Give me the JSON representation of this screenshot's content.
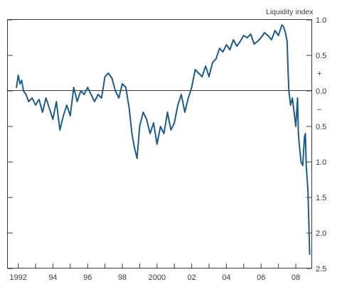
{
  "chart_data": {
    "type": "line",
    "title": "",
    "ylabel": "Liquidity index",
    "xlabel": "",
    "x_tick_labels": [
      "1992",
      "94",
      "96",
      "98",
      "2000",
      "02",
      "04",
      "06",
      "08"
    ],
    "y_tick_labels": [
      "1.0",
      "0.5",
      "+",
      "0.0",
      "–",
      "0.5",
      "1.0",
      "1.5",
      "2.0",
      "2.5"
    ],
    "xlim": [
      1991.4,
      2008.9
    ],
    "ylim": [
      -2.5,
      1.0
    ],
    "zero_line": true,
    "grid": false,
    "line_color": "#1d5d8a",
    "series": [
      {
        "x": [
          1991.9,
          1992.0,
          1992.1,
          1992.2,
          1992.3,
          1992.45,
          1992.6,
          1992.8,
          1993.0,
          1993.2,
          1993.4,
          1993.6,
          1993.8,
          1994.0,
          1994.2,
          1994.4,
          1994.6,
          1994.8,
          1995.0,
          1995.2,
          1995.4,
          1995.6,
          1995.8,
          1996.0,
          1996.2,
          1996.4,
          1996.6,
          1996.8,
          1997.0,
          1997.2,
          1997.4,
          1997.6,
          1997.8,
          1998.0,
          1998.2,
          1998.4,
          1998.55,
          1998.7,
          1998.85,
          1999.0,
          1999.2,
          1999.4,
          1999.6,
          1999.8,
          2000.0,
          2000.2,
          2000.4,
          2000.6,
          2000.8,
          2001.0,
          2001.2,
          2001.4,
          2001.6,
          2001.8,
          2002.0,
          2002.2,
          2002.4,
          2002.6,
          2002.8,
          2003.0,
          2003.2,
          2003.4,
          2003.6,
          2003.8,
          2004.0,
          2004.2,
          2004.4,
          2004.6,
          2004.8,
          2005.0,
          2005.2,
          2005.4,
          2005.6,
          2005.8,
          2006.0,
          2006.2,
          2006.4,
          2006.6,
          2006.8,
          2007.0,
          2007.2,
          2007.3,
          2007.4,
          2007.5,
          2007.55,
          2007.6,
          2007.7,
          2007.8,
          2007.9,
          2008.0,
          2008.1,
          2008.15,
          2008.2,
          2008.3,
          2008.4,
          2008.5,
          2008.55,
          2008.6,
          2008.7,
          2008.8
        ],
        "y": [
          0.05,
          0.22,
          0.1,
          0.15,
          0.0,
          -0.05,
          -0.15,
          -0.1,
          -0.2,
          -0.12,
          -0.3,
          -0.1,
          -0.25,
          -0.4,
          -0.15,
          -0.55,
          -0.35,
          -0.2,
          -0.35,
          0.05,
          -0.15,
          0.0,
          -0.05,
          0.05,
          -0.05,
          -0.15,
          -0.05,
          -0.1,
          0.2,
          0.25,
          0.18,
          0.0,
          -0.1,
          0.1,
          0.05,
          -0.25,
          -0.6,
          -0.8,
          -0.95,
          -0.5,
          -0.3,
          -0.4,
          -0.6,
          -0.45,
          -0.75,
          -0.5,
          -0.6,
          -0.3,
          -0.55,
          -0.45,
          -0.2,
          -0.05,
          -0.3,
          -0.1,
          0.05,
          0.3,
          0.25,
          0.2,
          0.35,
          0.2,
          0.4,
          0.45,
          0.6,
          0.55,
          0.65,
          0.58,
          0.72,
          0.63,
          0.7,
          0.78,
          0.75,
          0.8,
          0.66,
          0.7,
          0.75,
          0.82,
          0.78,
          0.72,
          0.85,
          0.78,
          0.93,
          0.9,
          0.82,
          0.7,
          0.3,
          0.0,
          -0.2,
          -0.1,
          -0.3,
          -0.5,
          -0.1,
          -0.6,
          -0.75,
          -1.0,
          -1.05,
          -0.65,
          -0.6,
          -1.05,
          -1.4,
          -2.3
        ]
      }
    ]
  }
}
